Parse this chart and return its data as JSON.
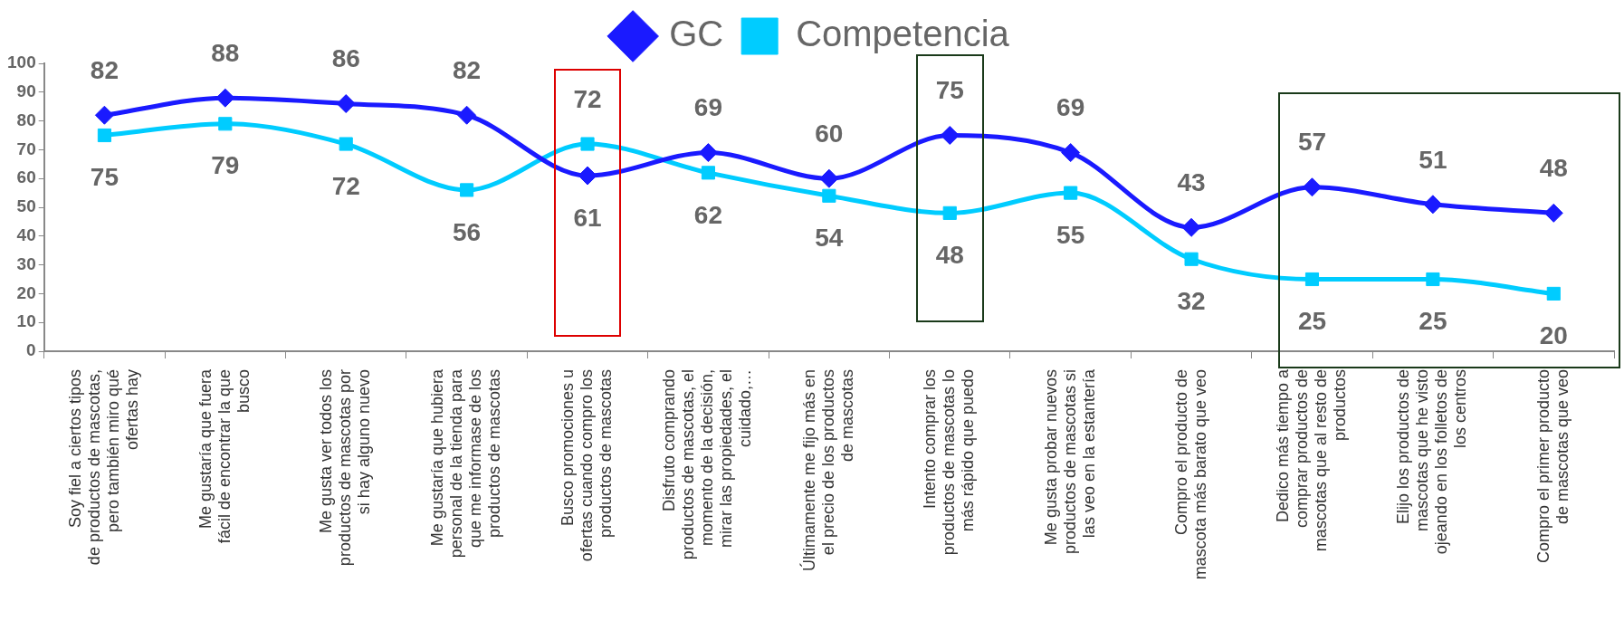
{
  "chart_data": {
    "type": "line",
    "categories": [
      "Soy fiel a ciertos tipos de productos de mascotas, pero también miro qué ofertas hay",
      "Me gustaría que fuera fácil de encontrar la que busco",
      "Me gusta ver todos los productos de mascotas por si hay alguno nuevo",
      "Me gustaría que hubiera personal de la tienda para que me informase de los productos de mascotas",
      "Busco promociones u ofertas cuando compro los productos de mascotas",
      "Disfruto comprando productos de mascotas, el momento de la decisión, mirar las propiedades, el cuidado,…",
      "Últimamente me fijo más en el precio de los productos de mascotas",
      "Intento comprar los productos de mascotas lo más rápido que puedo",
      "Me gusta probar nuevos productos de mascotas si las veo en la estantería",
      "Compro el producto de mascota más barato que veo",
      "Dedico más tiempo a comprar productos de mascotas que al resto de productos",
      "Elijo los productos de mascotas que he visto ojeando en los folletos de los centros",
      "Compro el primer producto de mascotas que veo"
    ],
    "series": [
      {
        "name": "GC",
        "color": "#1a1aff",
        "marker": "diamond",
        "values": [
          82,
          88,
          86,
          82,
          61,
          69,
          60,
          75,
          69,
          43,
          57,
          51,
          48
        ]
      },
      {
        "name": "Competencia",
        "color": "#00ccff",
        "marker": "square",
        "values": [
          75,
          79,
          72,
          56,
          72,
          62,
          54,
          48,
          55,
          32,
          25,
          25,
          20
        ]
      }
    ],
    "ylim": [
      0,
      100
    ],
    "yticks": [
      0,
      10,
      20,
      30,
      40,
      50,
      60,
      70,
      80,
      90,
      100
    ],
    "grid": false,
    "legend": "top",
    "data_labels": true
  }
}
